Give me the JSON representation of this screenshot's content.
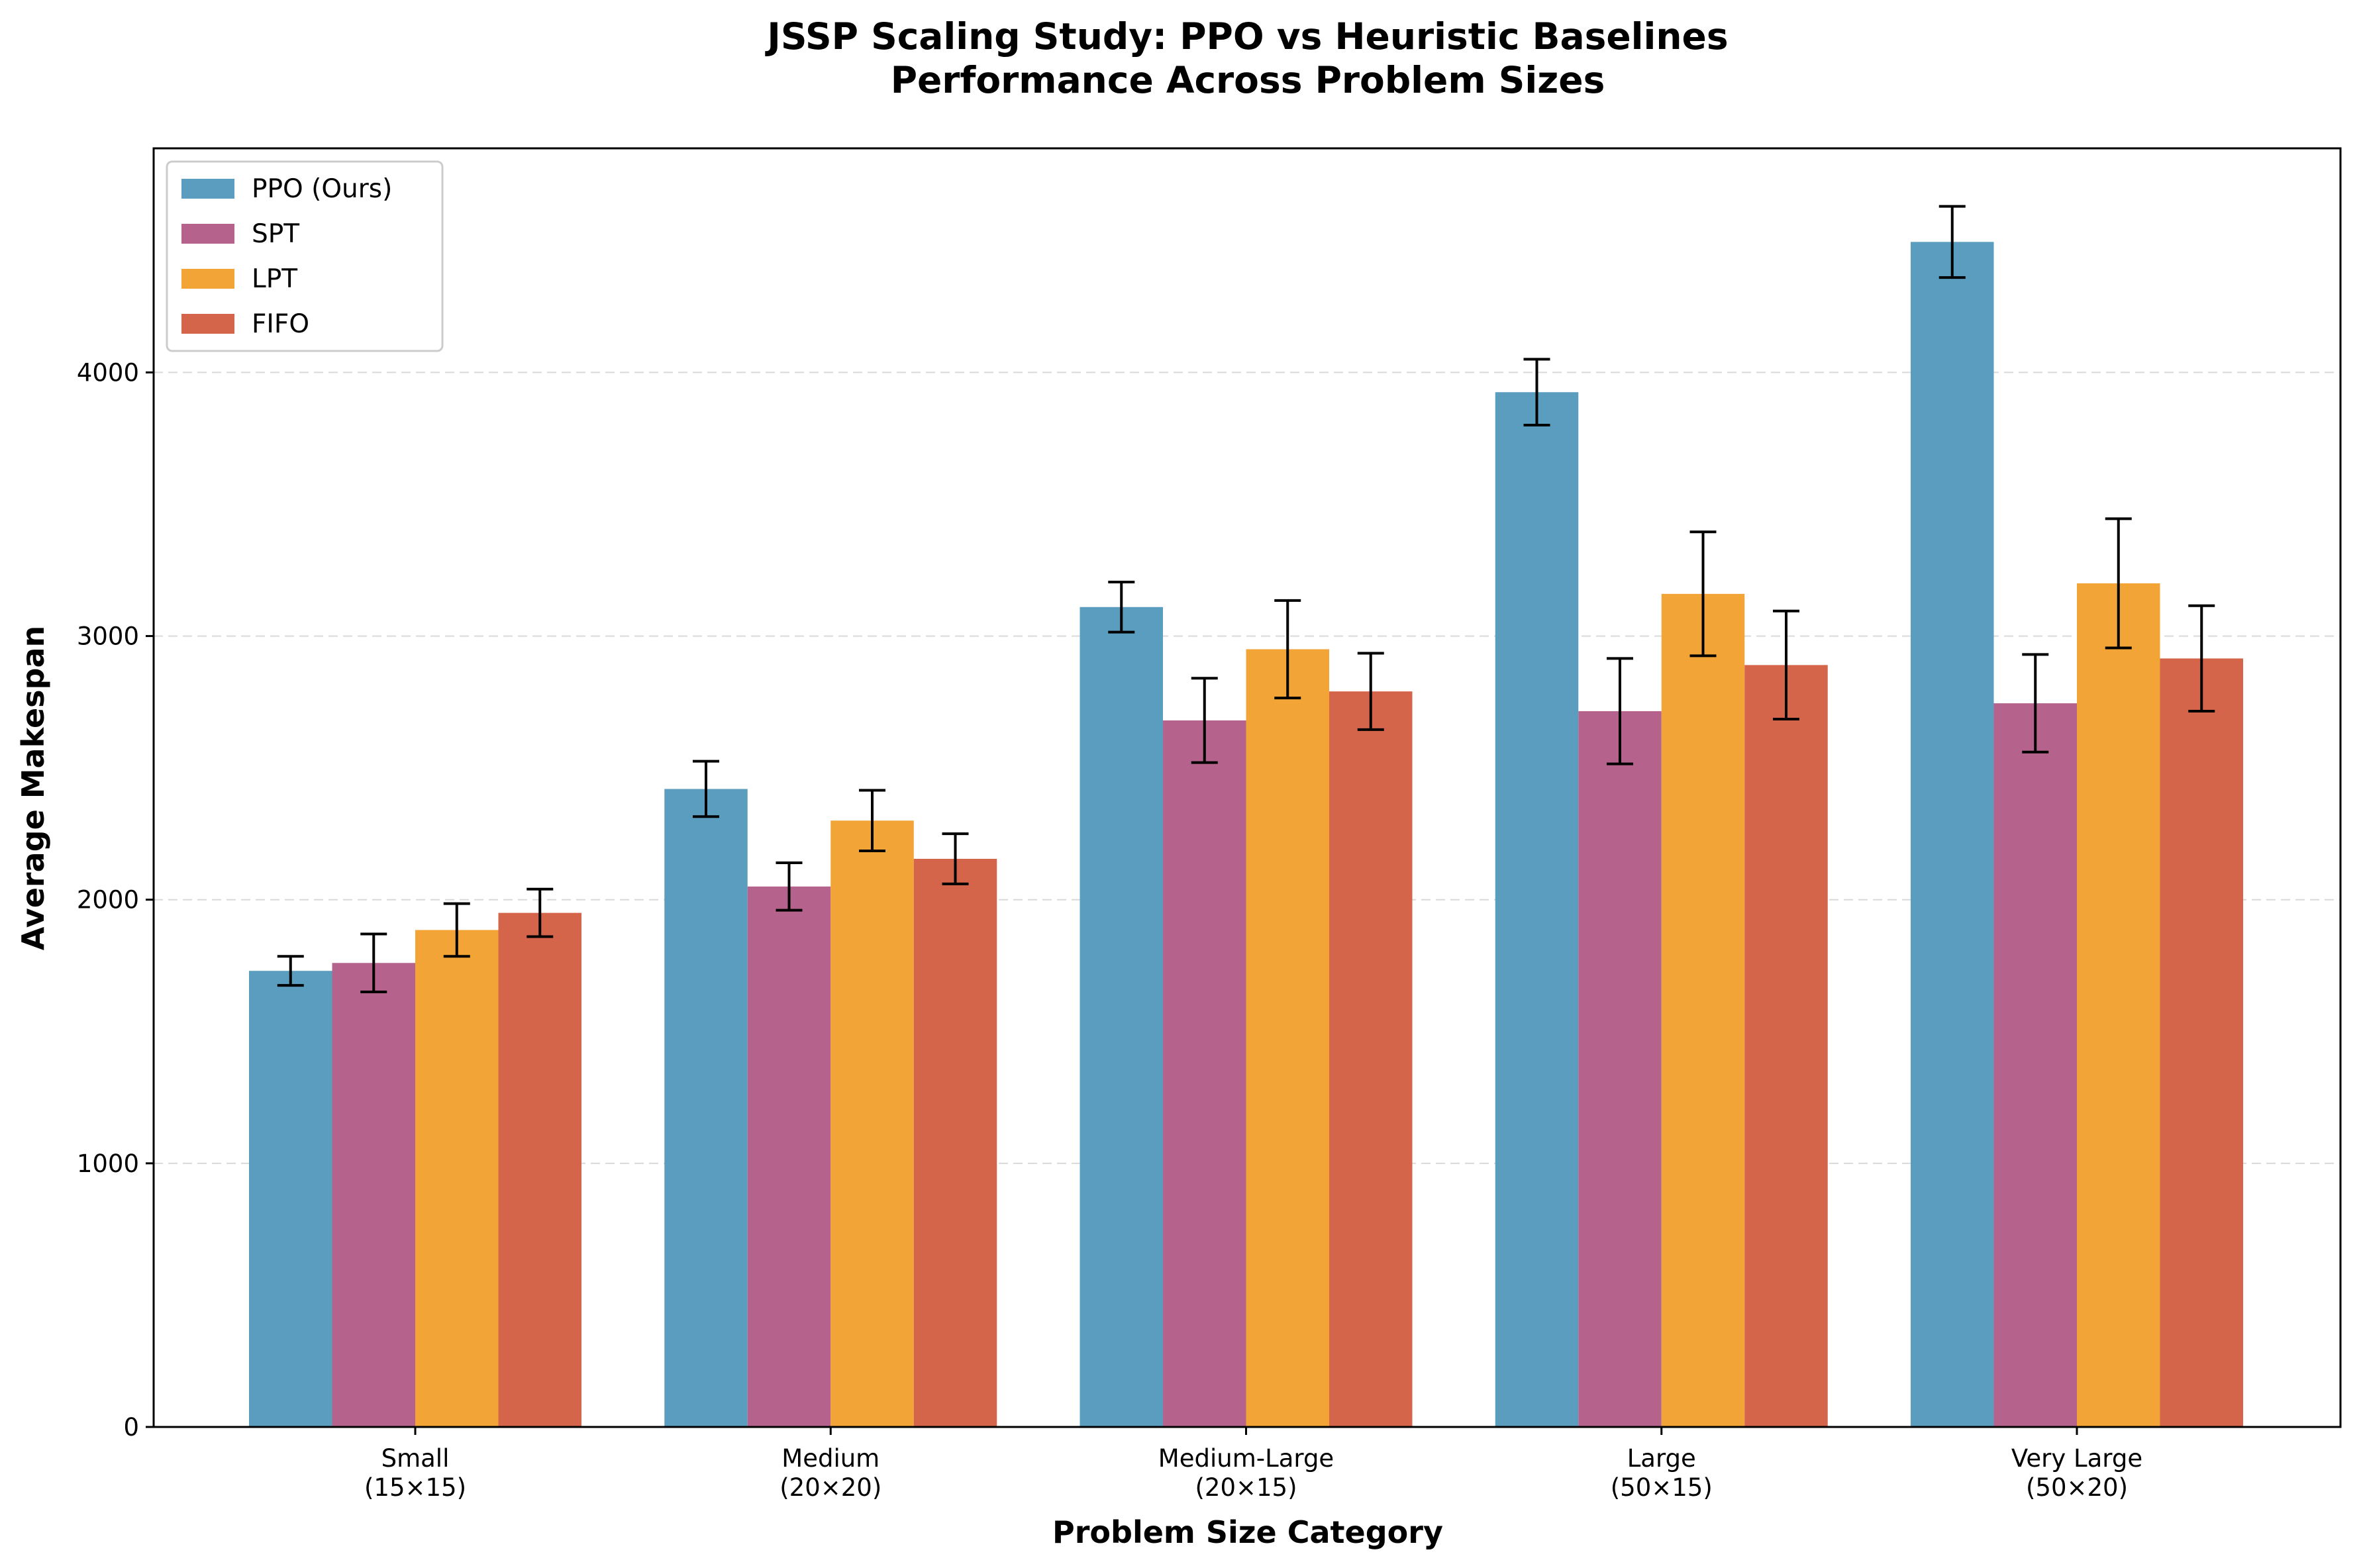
{
  "chart_data": {
    "type": "bar",
    "title": "JSSP Scaling Study: PPO vs Heuristic Baselines",
    "subtitle": "Performance Across Problem Sizes",
    "xlabel": "Problem Size Category",
    "ylabel": "Average Makespan",
    "categories": [
      "Small\n(15×15)",
      "Medium\n(20×20)",
      "Medium-Large\n(20×15)",
      "Large\n(50×15)",
      "Very Large\n(50×20)"
    ],
    "ylim": [
      0,
      4850
    ],
    "yticks": [
      0,
      1000,
      2000,
      3000,
      4000
    ],
    "grid": "y-dashed",
    "legend": "top-left",
    "series": [
      {
        "name": "PPO (Ours)",
        "color": "#5a9dbe",
        "values": [
          1730,
          2420,
          3110,
          3925,
          4495
        ],
        "errors": [
          55,
          105,
          95,
          125,
          135
        ]
      },
      {
        "name": "SPT",
        "color": "#b5638c",
        "values": [
          1760,
          2050,
          2680,
          2715,
          2745
        ],
        "errors": [
          110,
          90,
          160,
          200,
          185
        ]
      },
      {
        "name": "LPT",
        "color": "#f2a437",
        "values": [
          1885,
          2300,
          2950,
          3160,
          3200
        ],
        "errors": [
          100,
          115,
          185,
          235,
          245
        ]
      },
      {
        "name": "FIFO",
        "color": "#d4654b",
        "values": [
          1950,
          2155,
          2790,
          2890,
          2915
        ],
        "errors": [
          90,
          95,
          145,
          205,
          200
        ]
      }
    ]
  }
}
